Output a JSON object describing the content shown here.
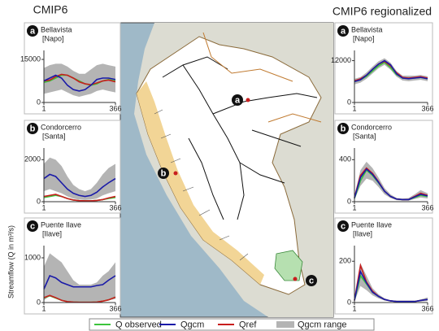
{
  "columns": [
    "CMIP6",
    "CMIP6 regionalized"
  ],
  "y_label": "Streamflow (Q in m³/s)",
  "map": {
    "labels": [
      "a",
      "b",
      "c"
    ]
  },
  "legend": [
    {
      "label": "Q observed",
      "color": "#3cc43c"
    },
    {
      "label": "Qgcm",
      "color": "#1a1aa8"
    },
    {
      "label": "Qref",
      "color": "#c81e1e"
    },
    {
      "label": "Qgcm range",
      "color": "#b4b4b4"
    }
  ],
  "chart_data": [
    {
      "type": "line",
      "panel": "a",
      "title": "Bellavista",
      "subtitle": "[Napo]",
      "x": [
        1,
        31,
        61,
        91,
        121,
        151,
        181,
        211,
        241,
        271,
        301,
        331,
        366
      ],
      "xlim": [
        1,
        366
      ],
      "xticks": [
        1,
        366
      ],
      "ylim": [
        0,
        17000
      ],
      "yticks": [
        0,
        15000
      ],
      "range": {
        "color": "#b4b4b4",
        "lower": [
          3000,
          3500,
          4000,
          4500,
          3500,
          2500,
          2000,
          2500,
          3000,
          4000,
          4500,
          4000,
          3500
        ],
        "upper": [
          12000,
          13000,
          13500,
          13500,
          12500,
          11000,
          10000,
          10000,
          11500,
          13000,
          13500,
          13000,
          12500
        ]
      },
      "series": [
        {
          "color": "#3cc43c",
          "values": [
            7000,
            7500,
            8500,
            9500,
            9500,
            8500,
            7500,
            6500,
            6000,
            6500,
            7500,
            8000,
            7500
          ]
        },
        {
          "color": "#c81e1e",
          "values": [
            7500,
            7800,
            9000,
            9800,
            9500,
            8500,
            7200,
            6500,
            6200,
            6800,
            7500,
            7800,
            7200
          ]
        },
        {
          "color": "#1a1aa8",
          "values": [
            7500,
            8500,
            9500,
            8500,
            6000,
            4500,
            4000,
            4500,
            6000,
            8000,
            8500,
            8500,
            8000
          ]
        }
      ]
    },
    {
      "type": "line",
      "panel": "b",
      "title": "Condorcerro",
      "subtitle": "[Santa]",
      "x": [
        1,
        31,
        61,
        91,
        121,
        151,
        181,
        211,
        241,
        271,
        301,
        331,
        366
      ],
      "xlim": [
        1,
        366
      ],
      "xticks": [
        1,
        366
      ],
      "ylim": [
        0,
        2400
      ],
      "yticks": [
        0,
        2000
      ],
      "range": {
        "color": "#b4b4b4",
        "lower": [
          500,
          600,
          500,
          400,
          250,
          150,
          100,
          80,
          100,
          150,
          300,
          400,
          500
        ],
        "upper": [
          1800,
          2100,
          2000,
          1700,
          1200,
          800,
          600,
          500,
          600,
          900,
          1300,
          1600,
          1800
        ]
      },
      "series": [
        {
          "color": "#3cc43c",
          "values": [
            200,
            250,
            300,
            250,
            150,
            80,
            50,
            40,
            40,
            60,
            100,
            150,
            200
          ]
        },
        {
          "color": "#c81e1e",
          "values": [
            250,
            300,
            350,
            250,
            150,
            80,
            50,
            40,
            40,
            60,
            100,
            180,
            250
          ]
        },
        {
          "color": "#1a1aa8",
          "values": [
            1100,
            1300,
            1200,
            900,
            600,
            400,
            300,
            250,
            300,
            450,
            700,
            900,
            1100
          ]
        }
      ]
    },
    {
      "type": "line",
      "panel": "c",
      "title": "Puente Ilave",
      "subtitle": "[Ilave]",
      "x": [
        1,
        31,
        61,
        91,
        121,
        151,
        181,
        211,
        241,
        271,
        301,
        331,
        366
      ],
      "xlim": [
        1,
        366
      ],
      "xticks": [
        1,
        366
      ],
      "ylim": [
        0,
        1200
      ],
      "yticks": [
        0,
        1000
      ],
      "range": {
        "color": "#b4b4b4",
        "lower": [
          50,
          150,
          100,
          50,
          20,
          10,
          5,
          5,
          5,
          10,
          20,
          50,
          80
        ],
        "upper": [
          800,
          1100,
          1000,
          900,
          700,
          500,
          400,
          400,
          400,
          450,
          600,
          700,
          900
        ]
      },
      "series": [
        {
          "color": "#3cc43c",
          "values": [
            100,
            150,
            100,
            50,
            20,
            10,
            5,
            5,
            5,
            10,
            30,
            60,
            120
          ]
        },
        {
          "color": "#c81e1e",
          "values": [
            110,
            160,
            110,
            50,
            20,
            10,
            5,
            5,
            5,
            10,
            30,
            60,
            120
          ]
        },
        {
          "color": "#1a1aa8",
          "values": [
            300,
            600,
            550,
            450,
            400,
            350,
            350,
            350,
            350,
            380,
            400,
            500,
            600
          ]
        }
      ]
    },
    {
      "type": "line",
      "panel": "a",
      "title": "Bellavista",
      "subtitle": "[Napo]",
      "x": [
        1,
        31,
        61,
        91,
        121,
        151,
        181,
        211,
        241,
        271,
        301,
        331,
        366
      ],
      "xlim": [
        1,
        366
      ],
      "xticks": [
        1,
        366
      ],
      "ylim": [
        0,
        14000
      ],
      "yticks": [
        0,
        12000
      ],
      "range": {
        "color": "#b4b4b4",
        "lower": [
          5200,
          5700,
          6800,
          8300,
          9800,
          10800,
          9400,
          7400,
          6300,
          6100,
          6300,
          6500,
          6100
        ],
        "upper": [
          6800,
          7300,
          8600,
          10300,
          11800,
          12700,
          11400,
          9000,
          7700,
          7700,
          7700,
          7900,
          7500
        ]
      },
      "series": [
        {
          "color": "#3cc43c",
          "values": [
            6000,
            6500,
            7500,
            9000,
            10500,
            11500,
            10000,
            8000,
            7000,
            7000,
            7000,
            7200,
            6800
          ]
        },
        {
          "color": "#c81e1e",
          "values": [
            6200,
            6800,
            7800,
            9500,
            11000,
            11800,
            10500,
            8500,
            7200,
            7000,
            7200,
            7400,
            7000
          ]
        },
        {
          "color": "#1a1aa8",
          "values": [
            6000,
            6500,
            7800,
            9500,
            11000,
            12000,
            10800,
            8200,
            7000,
            6800,
            7000,
            7200,
            6800
          ]
        }
      ]
    },
    {
      "type": "line",
      "panel": "b",
      "title": "Condorcerro",
      "subtitle": "[Santa]",
      "x": [
        1,
        31,
        61,
        91,
        121,
        151,
        181,
        211,
        241,
        271,
        301,
        331,
        366
      ],
      "xlim": [
        1,
        366
      ],
      "xticks": [
        1,
        366
      ],
      "ylim": [
        0,
        480
      ],
      "yticks": [
        0,
        400
      ],
      "range": {
        "color": "#b4b4b4",
        "lower": [
          20,
          150,
          220,
          200,
          140,
          70,
          35,
          15,
          10,
          10,
          25,
          40,
          30
        ],
        "upper": [
          60,
          300,
          380,
          320,
          230,
          130,
          70,
          35,
          30,
          35,
          70,
          110,
          80
        ]
      },
      "series": [
        {
          "color": "#3cc43c",
          "values": [
            30,
            200,
            300,
            250,
            180,
            100,
            50,
            25,
            20,
            20,
            40,
            60,
            50
          ]
        },
        {
          "color": "#c81e1e",
          "values": [
            40,
            250,
            320,
            270,
            190,
            100,
            50,
            25,
            20,
            20,
            50,
            80,
            60
          ]
        },
        {
          "color": "#1a1aa8",
          "values": [
            35,
            230,
            310,
            260,
            185,
            100,
            50,
            25,
            20,
            20,
            45,
            70,
            55
          ]
        }
      ]
    },
    {
      "type": "line",
      "panel": "c",
      "title": "Puente Ilave",
      "subtitle": "[Ilave]",
      "x": [
        1,
        31,
        61,
        91,
        121,
        151,
        181,
        211,
        241,
        271,
        301,
        331,
        366
      ],
      "xlim": [
        1,
        366
      ],
      "xticks": [
        1,
        366
      ],
      "ylim": [
        0,
        260
      ],
      "yticks": [
        0,
        200
      ],
      "range": {
        "color": "#b4b4b4",
        "lower": [
          5,
          80,
          60,
          35,
          20,
          10,
          5,
          3,
          3,
          3,
          3,
          5,
          8
        ],
        "upper": [
          20,
          190,
          130,
          70,
          40,
          20,
          10,
          8,
          8,
          8,
          8,
          15,
          25
        ]
      },
      "series": [
        {
          "color": "#3cc43c",
          "values": [
            10,
            130,
            90,
            50,
            30,
            15,
            8,
            5,
            5,
            5,
            5,
            10,
            15
          ]
        },
        {
          "color": "#c81e1e",
          "values": [
            10,
            180,
            100,
            55,
            30,
            15,
            8,
            5,
            5,
            5,
            5,
            10,
            15
          ]
        },
        {
          "color": "#1a1aa8",
          "values": [
            10,
            150,
            95,
            50,
            30,
            15,
            8,
            5,
            5,
            5,
            5,
            10,
            15
          ]
        }
      ]
    }
  ]
}
